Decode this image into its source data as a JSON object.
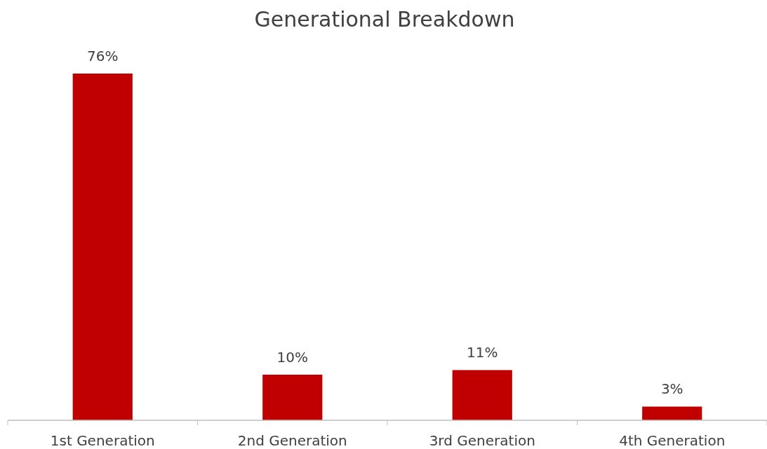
{
  "chart_data": {
    "type": "bar",
    "title": "Generational Breakdown",
    "categories": [
      "1st Generation",
      "2nd Generation",
      "3rd Generation",
      "4th Generation"
    ],
    "values": [
      76,
      10,
      11,
      3
    ],
    "color": "#c00000",
    "value_labels": [
      "76%",
      "10%",
      "11%",
      "3%"
    ]
  }
}
